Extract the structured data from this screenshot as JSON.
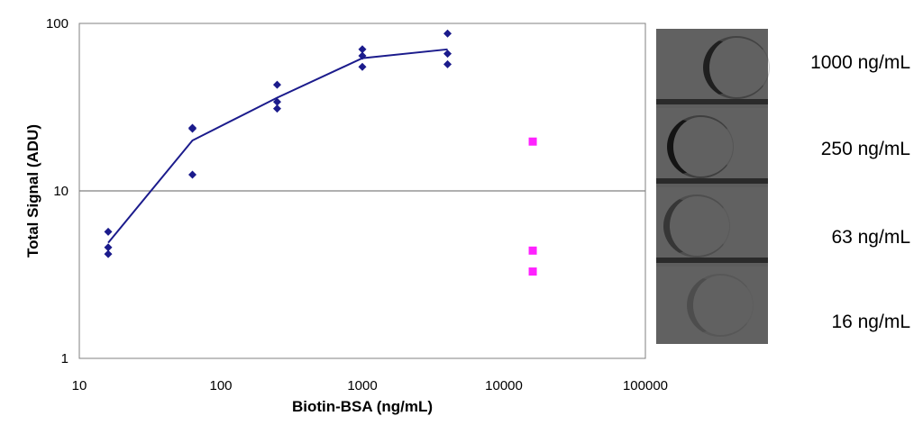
{
  "chart_data": {
    "type": "scatter",
    "xlabel": "Biotin-BSA (ng/mL)",
    "ylabel": "Total Signal (ADU)",
    "x_scale": "log",
    "y_scale": "log",
    "xlim": [
      10,
      100000
    ],
    "ylim": [
      1,
      100
    ],
    "x_ticks": [
      "10",
      "100",
      "1000",
      "10000",
      "100000"
    ],
    "y_ticks": [
      "1",
      "10",
      "100"
    ],
    "grid": "horizontal major lines",
    "series": [
      {
        "marker": "diamond",
        "color": "#1b1b8c",
        "points": [
          [
            16,
            5.7
          ],
          [
            16,
            4.6
          ],
          [
            16,
            4.2
          ],
          [
            63,
            23.8
          ],
          [
            63,
            23.5
          ],
          [
            63,
            12.5
          ],
          [
            250,
            43
          ],
          [
            250,
            34
          ],
          [
            250,
            31
          ],
          [
            1000,
            70
          ],
          [
            1000,
            64
          ],
          [
            1000,
            55
          ],
          [
            4000,
            87
          ],
          [
            4000,
            66
          ],
          [
            4000,
            57
          ]
        ]
      },
      {
        "marker": "line",
        "color": "#1b1b8c",
        "points": [
          [
            16,
            4.9
          ],
          [
            63,
            20
          ],
          [
            250,
            36
          ],
          [
            1000,
            62
          ],
          [
            4000,
            70
          ]
        ]
      },
      {
        "marker": "square",
        "color": "#ff22ff",
        "points": [
          [
            16000,
            19.7
          ],
          [
            16000,
            4.4
          ],
          [
            16000,
            3.3
          ]
        ]
      }
    ]
  },
  "strip_labels": [
    "1000 ng/mL",
    "250 ng/mL",
    "63 ng/mL",
    "16 ng/mL"
  ],
  "ring_intensity": [
    0.85,
    1.0,
    0.55,
    0.25
  ]
}
